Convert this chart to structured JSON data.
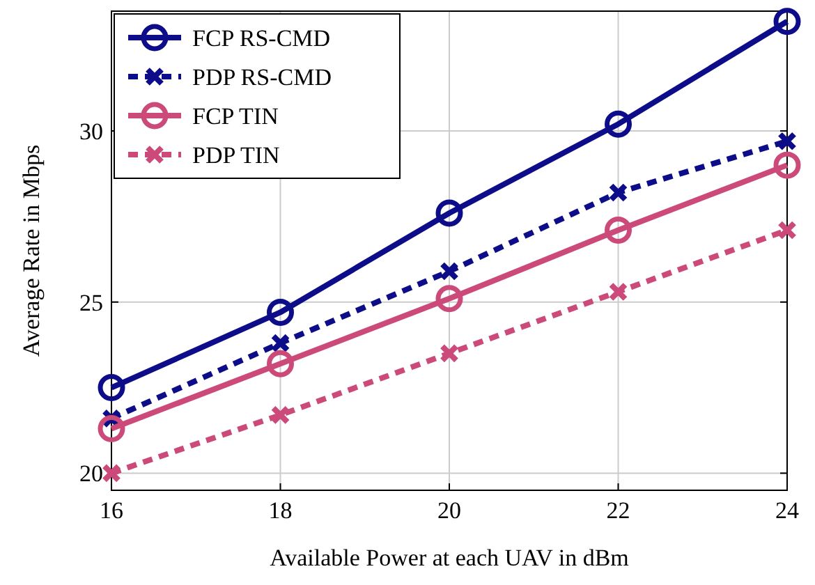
{
  "chart_data": {
    "type": "line",
    "xlabel": "Available Power at each UAV in dBm",
    "ylabel": "Average Rate in Mbps",
    "x": [
      16,
      18,
      20,
      22,
      24
    ],
    "xlim": [
      16,
      24
    ],
    "xticks": [
      16,
      18,
      20,
      22,
      24
    ],
    "ylim": [
      19.5,
      33.5
    ],
    "yticks": [
      20,
      25,
      30
    ],
    "grid": true,
    "legend": "top left",
    "series": [
      {
        "name": "FCP RS-CMD",
        "color": "#0d0d8a",
        "values": [
          22.5,
          24.7,
          27.6,
          30.2,
          33.2
        ],
        "marker": "circle",
        "line_style": "solid"
      },
      {
        "name": "PDP RS-CMD",
        "color": "#0d0d8a",
        "values": [
          21.6,
          23.8,
          25.9,
          28.2,
          29.7
        ],
        "marker": "cross",
        "line_style": "dashed"
      },
      {
        "name": "FCP TIN",
        "color": "#cc4a7a",
        "values": [
          21.3,
          23.2,
          25.1,
          27.1,
          29.0
        ],
        "marker": "circle",
        "line_style": "solid"
      },
      {
        "name": "PDP TIN",
        "color": "#cc4a7a",
        "values": [
          20.0,
          21.7,
          23.5,
          25.3,
          27.1
        ],
        "marker": "cross",
        "line_style": "dashed"
      }
    ]
  }
}
